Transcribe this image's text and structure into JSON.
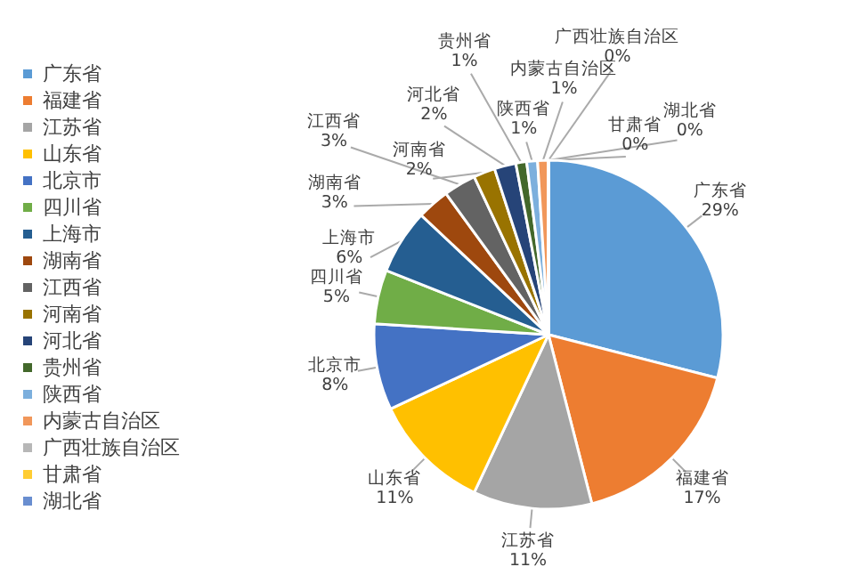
{
  "chart_data": {
    "type": "pie",
    "categories": [
      "广东省",
      "福建省",
      "江苏省",
      "山东省",
      "北京市",
      "四川省",
      "上海市",
      "湖南省",
      "江西省",
      "河南省",
      "河北省",
      "贵州省",
      "陕西省",
      "内蒙古自治区",
      "广西壮族自治区",
      "甘肃省",
      "湖北省"
    ],
    "values": [
      29,
      17,
      11,
      11,
      8,
      5,
      6,
      3,
      3,
      2,
      2,
      1,
      1,
      1,
      0,
      0,
      0
    ],
    "value_labels": [
      "29%",
      "17%",
      "11%",
      "11%",
      "8%",
      "5%",
      "6%",
      "3%",
      "3%",
      "2%",
      "2%",
      "1%",
      "1%",
      "1%",
      "0%",
      "0%",
      "0%"
    ],
    "colors": [
      "#5b9bd5",
      "#ed7d31",
      "#a5a5a5",
      "#ffc000",
      "#4472c4",
      "#70ad47",
      "#255e91",
      "#9e480e",
      "#636363",
      "#997300",
      "#264478",
      "#43682b",
      "#7cafdd",
      "#f1975a",
      "#b7b7b7",
      "#ffcd33",
      "#698ed0"
    ],
    "legend": "left"
  }
}
